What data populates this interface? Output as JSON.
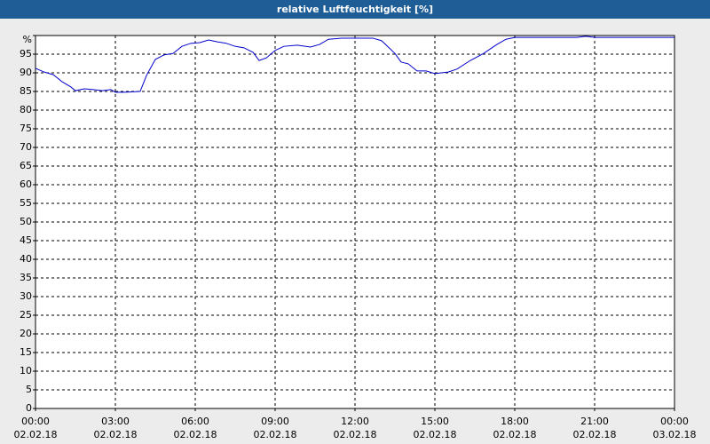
{
  "chart_data": {
    "type": "line",
    "title": "relative Luftfeuchtigkeit [%]",
    "series": [
      {
        "color": "#0000cc",
        "x": [
          0,
          0.33,
          0.67,
          1.0,
          1.33,
          1.5,
          1.83,
          2.17,
          2.5,
          2.83,
          3.0,
          3.33,
          3.93,
          4.17,
          4.5,
          4.83,
          5.17,
          5.5,
          5.83,
          6.17,
          6.5,
          6.83,
          7.17,
          7.5,
          7.83,
          8.17,
          8.4,
          8.67,
          9.0,
          9.33,
          9.83,
          10.33,
          10.67,
          11.0,
          11.5,
          12.67,
          13.0,
          13.5,
          13.73,
          14.0,
          14.33,
          14.67,
          15.0,
          15.5,
          15.83,
          16.33,
          16.83,
          17.33,
          17.67,
          18.0,
          20.33,
          20.67,
          21.0,
          24
        ],
        "values": [
          91.2,
          90.2,
          89.5,
          87.6,
          86.2,
          85.2,
          85.7,
          85.5,
          85.2,
          85.5,
          84.8,
          84.8,
          85,
          89.3,
          93.6,
          94.8,
          95.2,
          97.1,
          97.9,
          98.1,
          98.8,
          98.3,
          97.9,
          97.1,
          96.7,
          95.5,
          93.3,
          94.0,
          96,
          97.1,
          97.4,
          96.9,
          97.6,
          99.0,
          99.3,
          99.3,
          98.6,
          95.2,
          92.9,
          92.4,
          90.5,
          90.5,
          89.8,
          90.2,
          91,
          93.3,
          95.2,
          97.6,
          99.0,
          99.5,
          99.5,
          99.8,
          99.5,
          99.5
        ]
      }
    ],
    "xlim": [
      0,
      24
    ],
    "xticks": [
      {
        "value": 0,
        "label": "00:00\n02.02.18"
      },
      {
        "value": 3,
        "label": "03:00\n02.02.18"
      },
      {
        "value": 6,
        "label": "06:00\n02.02.18"
      },
      {
        "value": 9,
        "label": "09:00\n02.02.18"
      },
      {
        "value": 12,
        "label": "12:00\n02.02.18"
      },
      {
        "value": 15,
        "label": "15:00\n02.02.18"
      },
      {
        "value": 18,
        "label": "18:00\n02.02.18"
      },
      {
        "value": 21,
        "label": "21:00\n02.02.18"
      },
      {
        "value": 24,
        "label": "00:00\n03.02.18"
      }
    ],
    "ylim": [
      0,
      100
    ],
    "yticks": [
      0,
      5,
      10,
      15,
      20,
      25,
      30,
      35,
      40,
      45,
      50,
      55,
      60,
      65,
      70,
      75,
      80,
      85,
      90,
      95,
      {
        "value": 100,
        "label": "%"
      }
    ],
    "grid": true
  }
}
